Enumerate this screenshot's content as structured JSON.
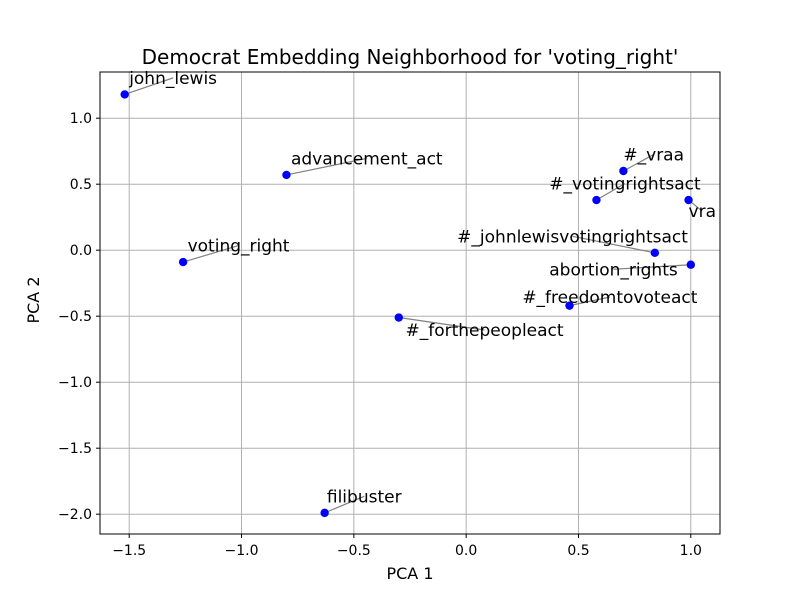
{
  "chart_data": {
    "type": "scatter",
    "title": "Democrat Embedding Neighborhood for 'voting_right'",
    "xlabel": "PCA 1",
    "ylabel": "PCA 2",
    "xlim": [
      -1.63,
      1.13
    ],
    "ylim": [
      -2.15,
      1.35
    ],
    "xticks": [
      -1.5,
      -1.0,
      -0.5,
      0.0,
      0.5,
      1.0
    ],
    "xtick_labels": [
      "−1.5",
      "−1.0",
      "−0.5",
      "0.0",
      "0.5",
      "1.0"
    ],
    "yticks": [
      -2.0,
      -1.5,
      -1.0,
      -0.5,
      0.0,
      0.5,
      1.0
    ],
    "ytick_labels": [
      "−2.0",
      "−1.5",
      "−1.0",
      "−0.5",
      "0.0",
      "0.5",
      "1.0"
    ],
    "grid": true,
    "marker_color": "#0000ff",
    "leader_color": "#808080",
    "points": [
      {
        "label": "john_lewis",
        "x": -1.52,
        "y": 1.18,
        "label_x": -1.5,
        "label_y": 1.26
      },
      {
        "label": "advancement_act",
        "x": -0.8,
        "y": 0.57,
        "label_x": -0.78,
        "label_y": 0.65
      },
      {
        "label": "voting_right",
        "x": -1.26,
        "y": -0.09,
        "label_x": -1.24,
        "label_y": -0.01
      },
      {
        "label": "#_vraa",
        "x": 0.7,
        "y": 0.6,
        "label_x": 0.7,
        "label_y": 0.68
      },
      {
        "label": "#_votingrightsact",
        "x": 0.58,
        "y": 0.38,
        "label_x": 0.37,
        "label_y": 0.46
      },
      {
        "label": "vra",
        "x": 0.99,
        "y": 0.38,
        "label_x": 0.99,
        "label_y": 0.25
      },
      {
        "label": "#_johnlewisvotingrightsact",
        "x": 0.84,
        "y": -0.02,
        "label_x": -0.04,
        "label_y": 0.06
      },
      {
        "label": "abortion_rights",
        "x": 1.0,
        "y": -0.11,
        "label_x": 0.37,
        "label_y": -0.19
      },
      {
        "label": "#_freedomtovoteact",
        "x": 0.46,
        "y": -0.42,
        "label_x": 0.25,
        "label_y": -0.4
      },
      {
        "label": "#_forthepeopleact",
        "x": -0.3,
        "y": -0.51,
        "label_x": -0.27,
        "label_y": -0.65
      },
      {
        "label": "filibuster",
        "x": -0.63,
        "y": -1.99,
        "label_x": -0.62,
        "label_y": -1.91
      }
    ]
  }
}
